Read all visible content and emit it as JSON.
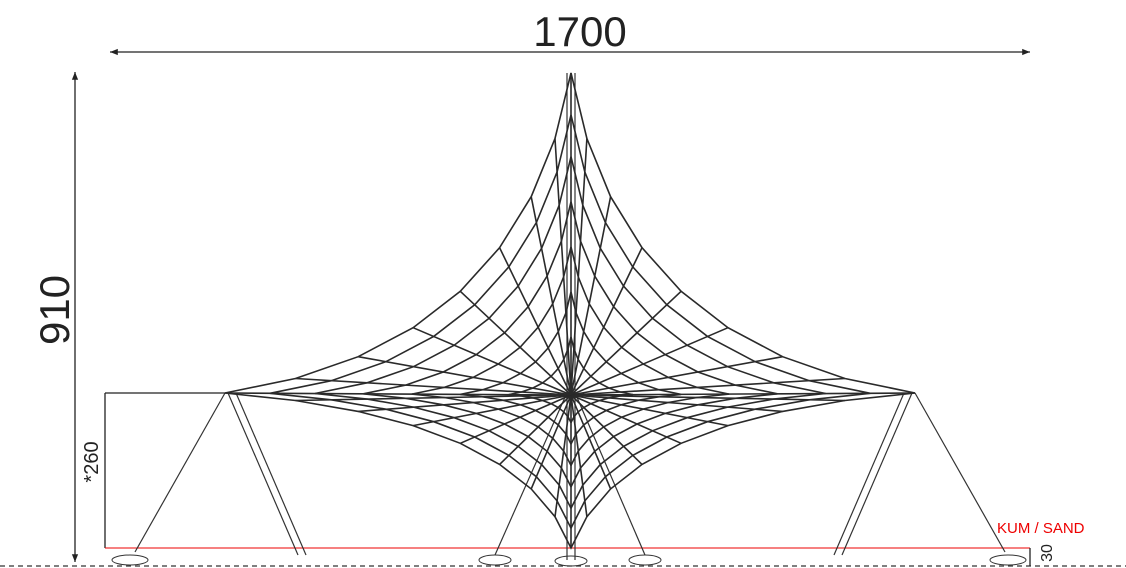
{
  "dimensions": {
    "width": "1700",
    "height": "910",
    "corner_height": "*260",
    "ground_label": "KUM / SAND",
    "ground_depth": "30"
  }
}
